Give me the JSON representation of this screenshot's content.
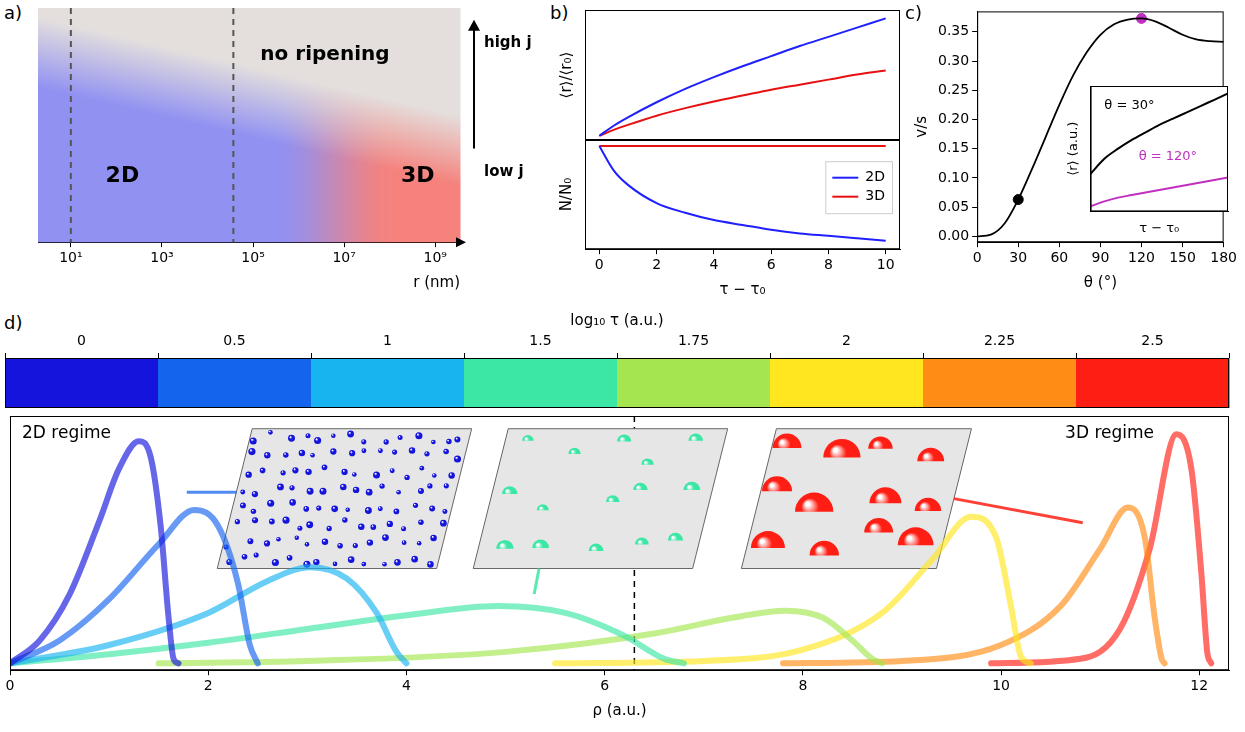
{
  "chart_data": [
    {
      "panel_label": "a)",
      "type": "heatmap",
      "xlabel": "r (nm)",
      "log": "x",
      "xlim": [
        1.9,
        3500000000
      ],
      "xticks": [
        {
          "value": 10,
          "label": "10¹"
        },
        {
          "value": 1000,
          "label": "10³"
        },
        {
          "value": 100000,
          "label": "10⁵"
        },
        {
          "value": 10000000,
          "label": "10⁷"
        },
        {
          "value": 1000000000,
          "label": "10⁹"
        }
      ],
      "vlines": [
        10,
        37000
      ],
      "regions": [
        "2D",
        "3D",
        "no ripening"
      ],
      "annotations": [
        "high j",
        "low j"
      ],
      "tick_labels": "x"
    },
    {
      "panel_label": "b)",
      "type": "line",
      "ylabel": "⟨r⟩/⟨r₀⟩",
      "x": [
        0,
        0.5,
        1,
        2,
        3,
        4,
        5,
        6,
        7,
        8,
        9,
        10
      ],
      "xlim": [
        -0.5,
        10.5
      ],
      "ylim": [
        0.95,
        2.5
      ],
      "tick_labels": false,
      "series": [
        {
          "color": "#2020ff",
          "values": [
            1.0,
            1.12,
            1.22,
            1.4,
            1.56,
            1.7,
            1.83,
            1.95,
            2.07,
            2.18,
            2.29,
            2.4
          ]
        },
        {
          "color": "#e81010",
          "values": [
            1.0,
            1.07,
            1.13,
            1.24,
            1.33,
            1.41,
            1.48,
            1.55,
            1.61,
            1.67,
            1.73,
            1.78
          ]
        }
      ]
    },
    {
      "type": "line",
      "xlabel": "τ − τ₀",
      "ylabel": "N/N₀",
      "x": [
        0,
        0.5,
        1,
        2,
        3,
        4,
        5,
        6,
        7,
        8,
        9,
        10
      ],
      "xlim": [
        -0.5,
        10.5
      ],
      "xticks": [
        0,
        2,
        4,
        6,
        8,
        10
      ],
      "ylim": [
        0.15,
        1.05
      ],
      "tick_labels": "x",
      "legend": "lower right",
      "series": [
        {
          "name": "2D",
          "color": "#2020ff",
          "values": [
            1.0,
            0.8,
            0.68,
            0.53,
            0.45,
            0.39,
            0.35,
            0.31,
            0.28,
            0.26,
            0.24,
            0.22
          ]
        },
        {
          "name": "3D",
          "color": "#e81010",
          "values": [
            1.0,
            1.0,
            1.0,
            1.0,
            1.0,
            1.0,
            1.0,
            1.0,
            1.0,
            1.0,
            1.0,
            1.0
          ]
        }
      ]
    },
    {
      "panel_label": "c)",
      "type": "line",
      "xlabel": "θ (°)",
      "ylabel": "v/s",
      "color": "#000000",
      "x": [
        0,
        10,
        20,
        30,
        40,
        50,
        60,
        70,
        80,
        90,
        100,
        110,
        120,
        130,
        140,
        150,
        160,
        170,
        180
      ],
      "values": [
        0.0,
        0.003,
        0.022,
        0.063,
        0.115,
        0.17,
        0.225,
        0.275,
        0.315,
        0.345,
        0.363,
        0.371,
        0.373,
        0.368,
        0.357,
        0.345,
        0.337,
        0.334,
        0.333
      ],
      "xlim": [
        0,
        180
      ],
      "xticks": [
        0,
        30,
        60,
        90,
        120,
        150,
        180
      ],
      "ylim": [
        -0.01,
        0.385
      ],
      "yticks": [
        {
          "value": 0,
          "label": "0.00"
        },
        0.05,
        {
          "value": 0.1,
          "label": "0.10"
        },
        0.15,
        {
          "value": 0.2,
          "label": "0.20"
        },
        0.25,
        {
          "value": 0.3,
          "label": "0.30"
        },
        0.35
      ],
      "points": [
        {
          "x": 30,
          "y": 0.063,
          "color": "#000000"
        },
        {
          "x": 120,
          "y": 0.373,
          "color": "#c030c0"
        }
      ]
    },
    {
      "type": "line",
      "xlabel": "τ − τ₀",
      "ylabel": "⟨r⟩ (a.u.)",
      "x": [
        0,
        1,
        2,
        3,
        4,
        5,
        6,
        7,
        8,
        9,
        10
      ],
      "xlim": [
        0,
        10
      ],
      "ylim": [
        0,
        1
      ],
      "tick_labels": false,
      "series": [
        {
          "name": "θ = 30°",
          "color": "#000000",
          "values": [
            0.3,
            0.42,
            0.5,
            0.57,
            0.63,
            0.69,
            0.74,
            0.79,
            0.84,
            0.89,
            0.94
          ]
        },
        {
          "name": "θ = 120°",
          "color": "#c030c0",
          "values": [
            0.04,
            0.08,
            0.11,
            0.13,
            0.15,
            0.17,
            0.19,
            0.21,
            0.23,
            0.25,
            0.27
          ]
        }
      ]
    },
    {
      "panel_label": "d)",
      "type": "line",
      "xlabel": "ρ (a.u.)",
      "xlim": [
        0,
        12.3
      ],
      "xticks": [
        0,
        2,
        4,
        6,
        8,
        10,
        12
      ],
      "ylim": [
        -0.03,
        1.08
      ],
      "tick_labels": "x",
      "vlines": [
        6.3
      ],
      "annotations": [
        "2D regime",
        "3D regime"
      ],
      "colorbar": {
        "label": "log₁₀ τ (a.u.)",
        "ticks": [
          0,
          0.5,
          1,
          1.5,
          1.75,
          2,
          2.25,
          2.5
        ],
        "colors": [
          "#1414dc",
          "#1464ee",
          "#18b4f0",
          "#3ce6a5",
          "#a5e650",
          "#ffe61e",
          "#ff8c14",
          "#ff1e14"
        ]
      },
      "series": [
        {
          "color": "#1414dc",
          "x": [
            0,
            0.3,
            0.6,
            0.9,
            1.1,
            1.3,
            1.42,
            1.52,
            1.6,
            1.65,
            1.7
          ],
          "values": [
            0,
            0.1,
            0.3,
            0.62,
            0.85,
            0.97,
            0.9,
            0.6,
            0.2,
            0.02,
            0
          ]
        },
        {
          "color": "#1464ee",
          "x": [
            0,
            0.5,
            1.0,
            1.5,
            1.86,
            2.1,
            2.3,
            2.42,
            2.5
          ],
          "values": [
            0,
            0.1,
            0.28,
            0.52,
            0.67,
            0.6,
            0.35,
            0.08,
            0
          ]
        },
        {
          "color": "#18b4f0",
          "x": [
            0,
            1,
            2,
            2.6,
            3.03,
            3.4,
            3.7,
            3.9,
            4.0
          ],
          "values": [
            0,
            0.08,
            0.22,
            0.36,
            0.42,
            0.37,
            0.22,
            0.05,
            0
          ]
        },
        {
          "color": "#3ce6a5",
          "x": [
            0,
            1,
            2,
            3,
            4,
            4.92,
            5.6,
            6.2,
            6.6,
            6.8
          ],
          "values": [
            0,
            0.04,
            0.09,
            0.15,
            0.21,
            0.25,
            0.22,
            0.12,
            0.02,
            0
          ]
        },
        {
          "color": "#a5e650",
          "x": [
            1.5,
            3,
            5,
            6.5,
            7.3,
            7.82,
            8.2,
            8.5,
            8.7,
            8.8
          ],
          "values": [
            0,
            0.01,
            0.05,
            0.13,
            0.2,
            0.23,
            0.2,
            0.1,
            0.02,
            0
          ]
        },
        {
          "color": "#ffe61e",
          "x": [
            5.5,
            7,
            8,
            8.8,
            9.3,
            9.7,
            9.95,
            10.1,
            10.2,
            10.3
          ],
          "values": [
            0,
            0.01,
            0.06,
            0.22,
            0.45,
            0.64,
            0.55,
            0.25,
            0.03,
            0
          ]
        },
        {
          "color": "#ff8c14",
          "x": [
            7.8,
            9,
            10,
            10.6,
            11.0,
            11.28,
            11.45,
            11.55,
            11.62,
            11.65
          ],
          "values": [
            0,
            0.01,
            0.08,
            0.25,
            0.5,
            0.68,
            0.55,
            0.2,
            0.02,
            0
          ]
        },
        {
          "color": "#ff1e14",
          "x": [
            9.9,
            10.8,
            11.2,
            11.5,
            11.77,
            11.92,
            12.02,
            12.08,
            12.12
          ],
          "values": [
            0,
            0.02,
            0.15,
            0.5,
            1.0,
            0.85,
            0.4,
            0.05,
            0
          ]
        }
      ]
    }
  ]
}
